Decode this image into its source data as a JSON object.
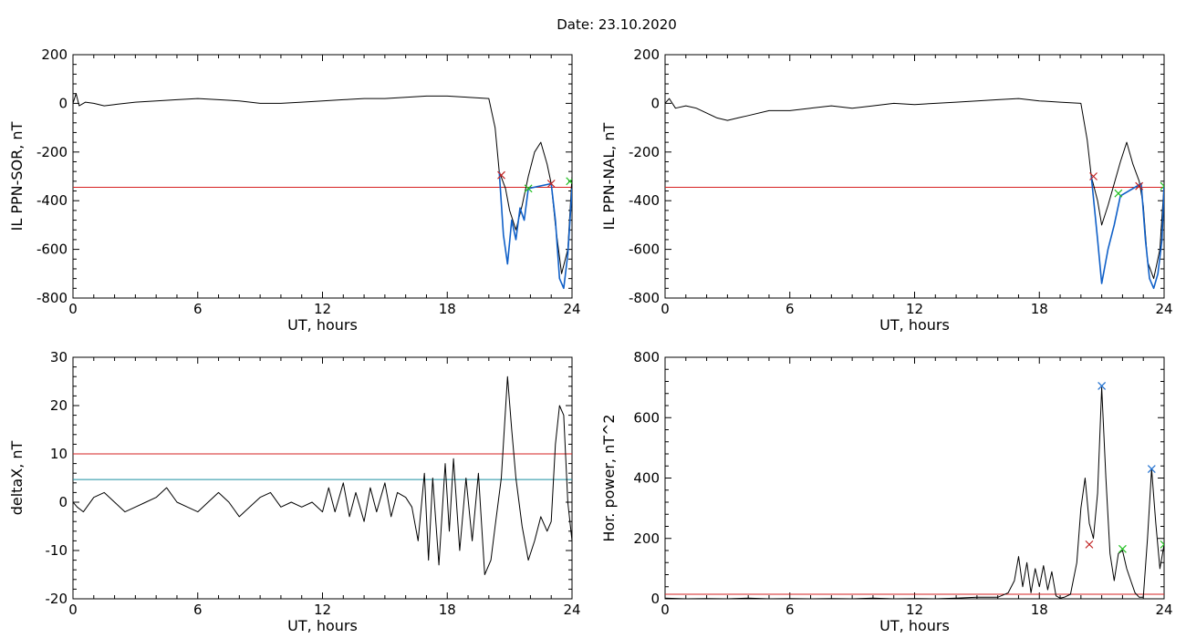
{
  "title": "Date:  23.10.2020",
  "colors": {
    "axis": "#000000",
    "threshold_red": "#d62020",
    "threshold_cyan": "#1a8fa0",
    "highlight_blue": "#1060c8",
    "marker_red": "#c02020",
    "marker_green": "#20c020",
    "marker_blue": "#1f6fcf"
  },
  "chart_data": [
    {
      "type": "line",
      "xlabel": "UT, hours",
      "ylabel": "IL PPN-SOR, nT",
      "xlim": [
        0,
        24
      ],
      "ylim": [
        -800,
        200
      ],
      "xticks": [
        0,
        6,
        12,
        18,
        24
      ],
      "yticks": [
        200,
        0,
        -200,
        -400,
        -600,
        -800
      ],
      "grid": false,
      "series": [
        {
          "color": "black",
          "x": [
            0,
            0.15,
            0.3,
            0.6,
            1,
            1.5,
            2,
            3,
            4,
            5,
            6,
            7,
            8,
            9,
            10,
            11,
            12,
            13,
            14,
            15,
            16,
            17,
            18,
            19,
            20,
            20.3,
            20.5,
            20.8,
            21.0,
            21.3,
            21.6,
            21.9,
            22.2,
            22.5,
            22.8,
            23.0,
            23.2,
            23.5,
            23.8,
            24
          ],
          "y": [
            0,
            40,
            -10,
            5,
            0,
            -10,
            -5,
            5,
            10,
            15,
            20,
            15,
            10,
            0,
            0,
            5,
            10,
            15,
            20,
            20,
            25,
            30,
            30,
            25,
            20,
            -100,
            -280,
            -350,
            -440,
            -520,
            -420,
            -300,
            -200,
            -160,
            -250,
            -330,
            -500,
            -700,
            -600,
            -300
          ]
        },
        {
          "color": "blue",
          "x": [
            20.5,
            20.7,
            20.9,
            21.1,
            21.3,
            21.5,
            21.7,
            21.9,
            23.0,
            23.2,
            23.4,
            23.6,
            23.8,
            24.0
          ],
          "y": [
            -280,
            -540,
            -660,
            -480,
            -560,
            -430,
            -480,
            -350,
            -330,
            -480,
            -720,
            -760,
            -620,
            -350
          ]
        }
      ],
      "thresholds": [
        {
          "y": -345,
          "color": "red"
        }
      ],
      "markers": [
        {
          "x": 20.6,
          "y": -295,
          "color": "red"
        },
        {
          "x": 21.9,
          "y": -350,
          "color": "green"
        },
        {
          "x": 23.0,
          "y": -330,
          "color": "red"
        },
        {
          "x": 23.9,
          "y": -320,
          "color": "green"
        }
      ]
    },
    {
      "type": "line",
      "xlabel": "UT, hours",
      "ylabel": "IL PPN-NAL, nT",
      "xlim": [
        0,
        24
      ],
      "ylim": [
        -800,
        200
      ],
      "xticks": [
        0,
        6,
        12,
        18,
        24
      ],
      "yticks": [
        200,
        0,
        -200,
        -400,
        -600,
        -800
      ],
      "grid": false,
      "series": [
        {
          "color": "black",
          "x": [
            0,
            0.2,
            0.5,
            1,
            1.5,
            2,
            2.5,
            3,
            3.5,
            4,
            5,
            6,
            7,
            8,
            9,
            10,
            11,
            12,
            13,
            14,
            15,
            16,
            17,
            18,
            19,
            20,
            20.3,
            20.5,
            20.8,
            21.0,
            21.3,
            21.6,
            21.9,
            22.2,
            22.5,
            22.8,
            23.0,
            23.2,
            23.5,
            23.8,
            24
          ],
          "y": [
            0,
            20,
            -20,
            -10,
            -20,
            -40,
            -60,
            -70,
            -60,
            -50,
            -30,
            -30,
            -20,
            -10,
            -20,
            -10,
            0,
            -5,
            0,
            5,
            10,
            15,
            20,
            10,
            5,
            0,
            -150,
            -300,
            -400,
            -500,
            -420,
            -330,
            -240,
            -160,
            -250,
            -320,
            -420,
            -650,
            -720,
            -600,
            -330
          ]
        },
        {
          "color": "blue",
          "x": [
            20.5,
            20.8,
            21.0,
            21.3,
            21.6,
            21.9,
            22.9,
            23.1,
            23.3,
            23.5,
            23.7,
            23.9,
            24.0
          ],
          "y": [
            -300,
            -560,
            -740,
            -600,
            -500,
            -380,
            -330,
            -560,
            -720,
            -760,
            -700,
            -560,
            -340
          ]
        }
      ],
      "thresholds": [
        {
          "y": -345,
          "color": "red"
        }
      ],
      "markers": [
        {
          "x": 20.6,
          "y": -300,
          "color": "red"
        },
        {
          "x": 21.8,
          "y": -370,
          "color": "green"
        },
        {
          "x": 22.8,
          "y": -340,
          "color": "red"
        },
        {
          "x": 24.0,
          "y": -340,
          "color": "green"
        }
      ]
    },
    {
      "type": "line",
      "xlabel": "UT, hours",
      "ylabel": "deltaX, nT",
      "xlim": [
        0,
        24
      ],
      "ylim": [
        -20,
        30
      ],
      "xticks": [
        0,
        6,
        12,
        18,
        24
      ],
      "yticks": [
        30,
        20,
        10,
        0,
        -10,
        -20
      ],
      "grid": false,
      "series": [
        {
          "color": "black",
          "x": [
            0,
            0.2,
            0.5,
            1,
            1.5,
            2,
            2.5,
            3,
            3.5,
            4,
            4.5,
            5,
            5.5,
            6,
            6.5,
            7,
            7.5,
            8,
            8.5,
            9,
            9.5,
            10,
            10.5,
            11,
            11.5,
            12,
            12.3,
            12.6,
            13,
            13.3,
            13.6,
            14,
            14.3,
            14.6,
            15,
            15.3,
            15.6,
            16,
            16.3,
            16.6,
            16.9,
            17.1,
            17.3,
            17.6,
            17.9,
            18.1,
            18.3,
            18.6,
            18.9,
            19.2,
            19.5,
            19.8,
            20.1,
            20.3,
            20.6,
            20.9,
            21.1,
            21.3,
            21.6,
            21.9,
            22.2,
            22.5,
            22.8,
            23.0,
            23.2,
            23.4,
            23.6,
            23.8,
            24
          ],
          "y": [
            0,
            -1,
            -2,
            1,
            2,
            0,
            -2,
            -1,
            0,
            1,
            3,
            0,
            -1,
            -2,
            0,
            2,
            0,
            -3,
            -1,
            1,
            2,
            -1,
            0,
            -1,
            0,
            -2,
            3,
            -2,
            4,
            -3,
            2,
            -4,
            3,
            -2,
            4,
            -3,
            2,
            1,
            -1,
            -8,
            6,
            -12,
            5,
            -13,
            8,
            -6,
            9,
            -10,
            5,
            -8,
            6,
            -15,
            -12,
            -5,
            5,
            26,
            15,
            5,
            -5,
            -12,
            -8,
            -3,
            -6,
            -4,
            12,
            20,
            18,
            0,
            -8
          ]
        }
      ],
      "thresholds": [
        {
          "y": 10,
          "color": "red"
        },
        {
          "y": 4.7,
          "color": "cyan"
        }
      ],
      "markers": []
    },
    {
      "type": "line",
      "xlabel": "UT, hours",
      "ylabel": "Hor. power, nT^2",
      "xlim": [
        0,
        24
      ],
      "ylim": [
        0,
        800
      ],
      "xticks": [
        0,
        6,
        12,
        18,
        24
      ],
      "yticks": [
        800,
        600,
        400,
        200,
        0
      ],
      "grid": false,
      "series": [
        {
          "color": "black",
          "x": [
            0,
            1,
            2,
            3,
            4,
            5,
            6,
            7,
            8,
            9,
            10,
            11,
            12,
            13,
            14,
            15,
            16,
            16.5,
            16.8,
            17.0,
            17.2,
            17.4,
            17.6,
            17.8,
            18.0,
            18.2,
            18.4,
            18.6,
            18.8,
            19.0,
            19.2,
            19.5,
            19.8,
            20.0,
            20.2,
            20.4,
            20.6,
            20.8,
            21.0,
            21.2,
            21.4,
            21.6,
            21.8,
            22.0,
            22.2,
            22.4,
            22.6,
            22.8,
            23.0,
            23.2,
            23.4,
            23.6,
            23.8,
            24
          ],
          "y": [
            2,
            0,
            1,
            0,
            2,
            0,
            1,
            0,
            1,
            0,
            2,
            0,
            1,
            0,
            2,
            5,
            5,
            20,
            60,
            140,
            40,
            120,
            20,
            100,
            40,
            110,
            30,
            90,
            10,
            2,
            5,
            15,
            120,
            300,
            400,
            250,
            200,
            350,
            700,
            400,
            150,
            60,
            150,
            160,
            100,
            60,
            20,
            5,
            5,
            200,
            430,
            250,
            100,
            180
          ]
        }
      ],
      "thresholds": [
        {
          "y": 15,
          "color": "red"
        }
      ],
      "markers": [
        {
          "x": 20.4,
          "y": 180,
          "color": "red"
        },
        {
          "x": 21.0,
          "y": 705,
          "color": "blue"
        },
        {
          "x": 22.0,
          "y": 165,
          "color": "green"
        },
        {
          "x": 23.4,
          "y": 430,
          "color": "blue"
        },
        {
          "x": 24.0,
          "y": 180,
          "color": "green"
        }
      ]
    }
  ]
}
